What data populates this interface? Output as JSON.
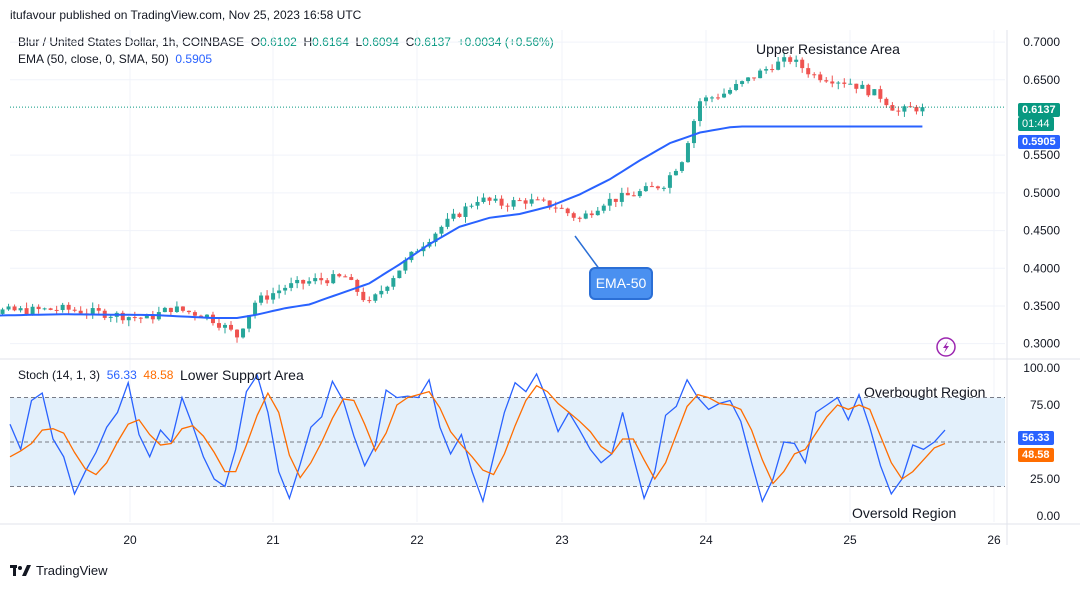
{
  "header": {
    "publisher": "itufavour published on TradingView.com, Nov 25, 2023 16:58 UTC"
  },
  "symbol": {
    "name": "Blur / United States Dollar, 1h, COINBASE",
    "open_label": "O",
    "open": "0.6102",
    "high_label": "H",
    "high": "0.6164",
    "low_label": "L",
    "low": "0.6094",
    "close_label": "C",
    "close": "0.6137",
    "change": "+0.0034 (+0.56%)"
  },
  "ema_legend": {
    "label": "EMA (50, close, 0, SMA, 50)",
    "value": "0.5905"
  },
  "stoch_legend": {
    "label": "Stoch (14, 1, 3)",
    "k": "56.33",
    "d": "48.58"
  },
  "annotations": {
    "upper_resistance": "Upper Resistance Area",
    "lower_support": "Lower Support Area",
    "ema_callout": "EMA-50",
    "overbought": "Overbought Region",
    "oversold": "Oversold Region"
  },
  "price_tags": {
    "last_price": "0.6137",
    "countdown": "01:44",
    "ema": "0.5905"
  },
  "stoch_tags": {
    "k": "56.33",
    "d": "48.58"
  },
  "footer": {
    "brand": "TradingView"
  },
  "colors": {
    "up": "#26a69a",
    "down": "#ef5350",
    "ema": "#2962ff",
    "stoch_k": "#2962ff",
    "stoch_d": "#ff6d00",
    "band": "#e3f0fb",
    "callout": "#4285f4"
  },
  "chart_data": [
    {
      "type": "candlestick",
      "title": "Blur / United States Dollar, 1h, COINBASE",
      "x_ticks": [
        "20",
        "21",
        "22",
        "23",
        "24",
        "25",
        "26"
      ],
      "y_ticks": [
        "0.7000",
        "0.6500",
        "0.5500",
        "0.5000",
        "0.4500",
        "0.4000",
        "0.3500",
        "0.3000"
      ],
      "ylim": [
        0.281,
        0.716
      ],
      "grid": true,
      "series": [
        {
          "name": "EMA (50, close, 0, SMA, 50)",
          "points": [
            [
              0,
              0.336
            ],
            [
              20,
              0.339
            ],
            [
              35,
              0.338
            ],
            [
              45,
              0.334
            ],
            [
              49,
              0.334
            ],
            [
              52,
              0.338
            ],
            [
              57,
              0.347
            ],
            [
              61,
              0.352
            ],
            [
              66,
              0.366
            ],
            [
              71,
              0.38
            ],
            [
              76,
              0.405
            ],
            [
              81,
              0.432
            ],
            [
              86,
              0.455
            ],
            [
              91,
              0.467
            ],
            [
              96,
              0.472
            ],
            [
              101,
              0.482
            ],
            [
              106,
              0.498
            ],
            [
              111,
              0.518
            ],
            [
              116,
              0.543
            ],
            [
              121,
              0.566
            ],
            [
              126,
              0.58
            ],
            [
              131,
              0.587
            ],
            [
              133,
              0.588
            ]
          ]
        },
        {
          "name": "Price",
          "points": [
            [
              0,
              0.345
            ],
            [
              4,
              0.352
            ],
            [
              8,
              0.343
            ],
            [
              14,
              0.344
            ],
            [
              20,
              0.346
            ],
            [
              28,
              0.339
            ],
            [
              34,
              0.333
            ],
            [
              38,
              0.347
            ],
            [
              44,
              0.337
            ],
            [
              47,
              0.322
            ],
            [
              49,
              0.31
            ],
            [
              52,
              0.355
            ],
            [
              57,
              0.375
            ],
            [
              62,
              0.384
            ],
            [
              67,
              0.388
            ],
            [
              71,
              0.352
            ],
            [
              75,
              0.39
            ],
            [
              79,
              0.426
            ],
            [
              83,
              0.455
            ],
            [
              86,
              0.473
            ],
            [
              89,
              0.492
            ],
            [
              93,
              0.485
            ],
            [
              97,
              0.49
            ],
            [
              102,
              0.482
            ],
            [
              106,
              0.465
            ],
            [
              110,
              0.488
            ],
            [
              115,
              0.498
            ],
            [
              120,
              0.512
            ],
            [
              123,
              0.545
            ],
            [
              126,
              0.622
            ],
            [
              130,
              0.632
            ],
            [
              134,
              0.65
            ],
            [
              138,
              0.669
            ],
            [
              141,
              0.677
            ],
            [
              145,
              0.656
            ],
            [
              151,
              0.646
            ],
            [
              156,
              0.628
            ],
            [
              159,
              0.607
            ],
            [
              161,
              0.612
            ],
            [
              163,
              0.613
            ]
          ]
        }
      ]
    },
    {
      "type": "line",
      "title": "Stoch (14, 1, 3)",
      "x_ticks": [
        "20",
        "21",
        "22",
        "23",
        "24",
        "25",
        "26"
      ],
      "y_ticks": [
        "100.00",
        "75.00",
        "25.00",
        "0.00"
      ],
      "ylim": [
        -4,
        104
      ],
      "bands": [
        20,
        80
      ],
      "series": [
        {
          "name": "%K",
          "values": [
            62,
            45,
            78,
            83,
            52,
            40,
            15,
            30,
            43,
            60,
            70,
            90,
            55,
            40,
            58,
            50,
            80,
            61,
            40,
            25,
            20,
            45,
            84,
            95,
            70,
            30,
            12,
            35,
            60,
            67,
            91,
            78,
            54,
            34,
            48,
            85,
            80,
            81,
            80,
            92,
            60,
            42,
            55,
            30,
            10,
            40,
            70,
            90,
            84,
            96,
            78,
            57,
            70,
            58,
            45,
            36,
            42,
            70,
            40,
            12,
            30,
            68,
            74,
            92,
            80,
            72,
            76,
            78,
            64,
            36,
            10,
            25,
            50,
            49,
            36,
            70,
            75,
            80,
            65,
            82,
            60,
            34,
            15,
            25,
            48,
            45,
            50,
            58
          ]
        },
        {
          "name": "%D",
          "values": [
            40,
            44,
            49,
            58,
            59,
            56,
            43,
            32,
            28,
            36,
            50,
            62,
            65,
            55,
            48,
            49,
            59,
            61,
            54,
            43,
            30,
            30,
            48,
            68,
            83,
            70,
            41,
            26,
            36,
            50,
            66,
            79,
            78,
            62,
            44,
            56,
            75,
            80,
            82,
            84,
            73,
            57,
            48,
            40,
            31,
            28,
            42,
            61,
            78,
            88,
            84,
            76,
            70,
            64,
            57,
            47,
            42,
            52,
            52,
            38,
            25,
            36,
            55,
            74,
            82,
            80,
            76,
            75,
            72,
            58,
            38,
            22,
            30,
            42,
            45,
            56,
            67,
            75,
            72,
            75,
            72,
            54,
            36,
            25,
            30,
            38,
            46,
            49
          ]
        }
      ]
    }
  ]
}
